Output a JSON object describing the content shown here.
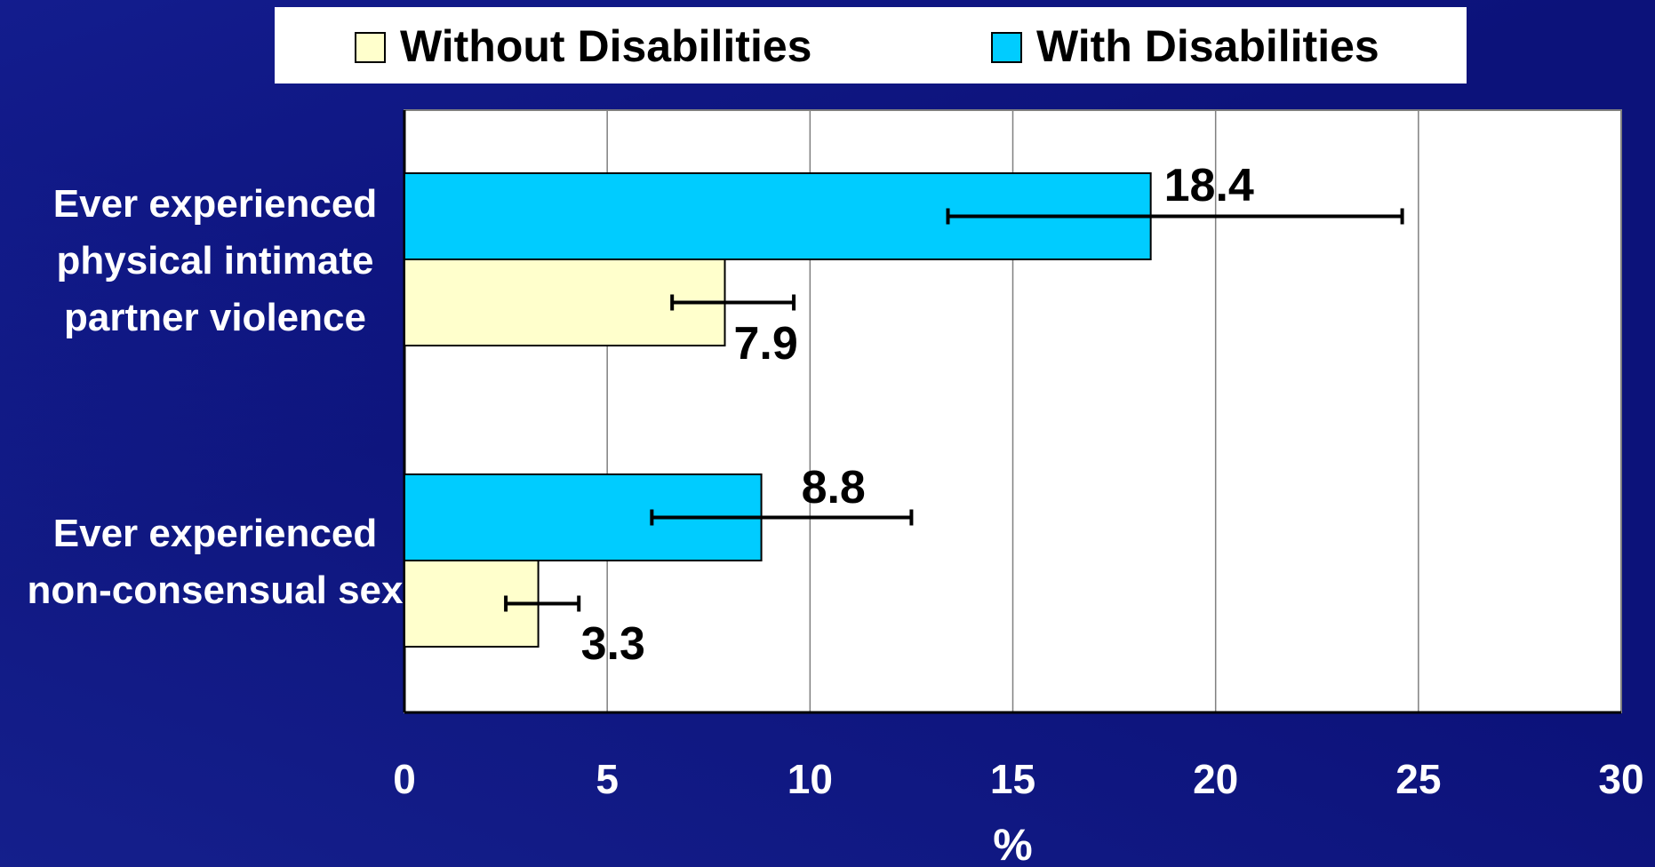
{
  "chart_data": {
    "type": "bar",
    "orientation": "horizontal",
    "categories": [
      [
        "Ever experienced",
        "physical intimate",
        "partner violence"
      ],
      [
        "Ever experienced",
        "non-consensual sex"
      ]
    ],
    "series": [
      {
        "name": "Without Disabilities",
        "color": "#ffffcc",
        "values": [
          7.9,
          3.3
        ],
        "error_low": [
          6.6,
          2.5
        ],
        "error_high": [
          9.6,
          4.3
        ]
      },
      {
        "name": "With Disabilities",
        "color": "#00ccff",
        "values": [
          18.4,
          8.8
        ],
        "error_low": [
          13.4,
          6.1
        ],
        "error_high": [
          24.6,
          12.5
        ]
      }
    ],
    "value_labels": [
      [
        "7.9",
        "18.4"
      ],
      [
        "3.3",
        "8.8"
      ]
    ],
    "xlim": [
      0,
      30
    ],
    "xticks": [
      "0",
      "5",
      "10",
      "15",
      "20",
      "25",
      "30"
    ],
    "xlabel": "%",
    "ylabel": "",
    "grid": "vertical",
    "legend": "top-center"
  },
  "colors": {
    "background": "#0c127a",
    "plot_bg": "#ffffff",
    "text": "#ffffff",
    "value_text": "#000000",
    "gridline": "#808080"
  }
}
